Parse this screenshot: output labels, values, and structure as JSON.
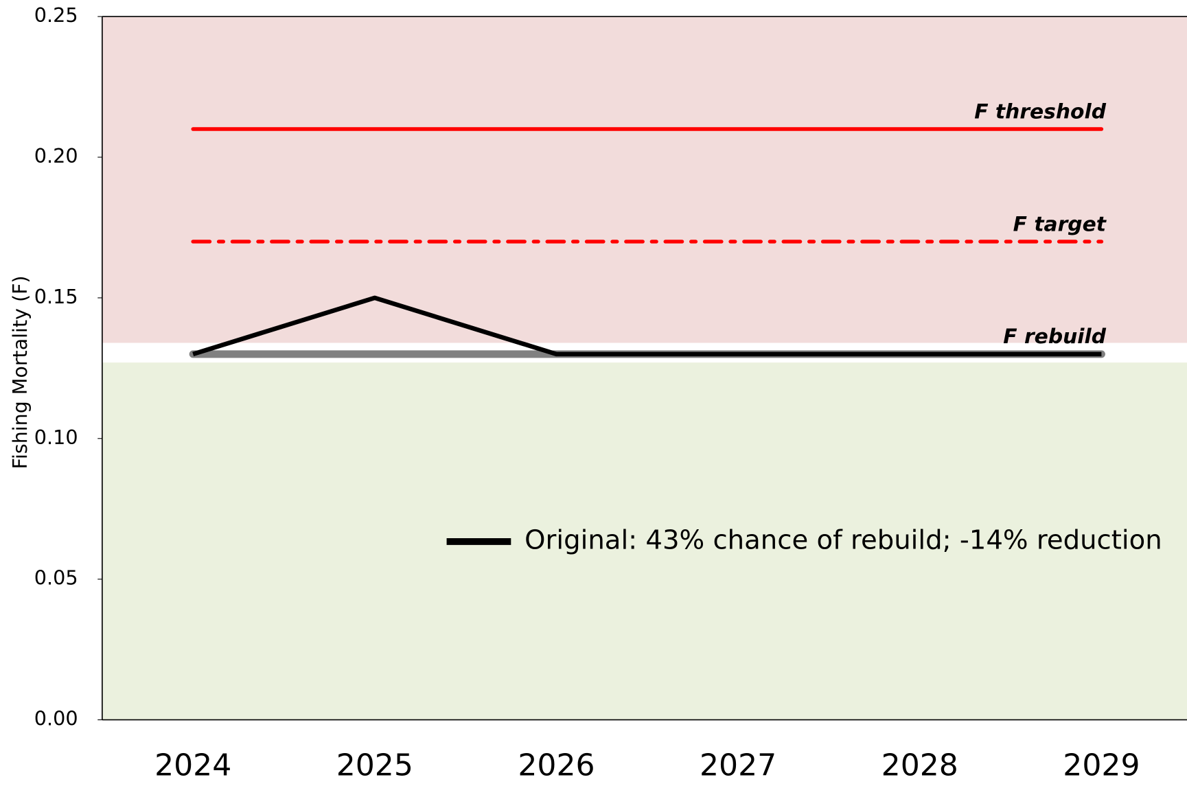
{
  "chart_data": {
    "type": "line",
    "y_label": "Fishing Mortality (F)",
    "categories": [
      "2024",
      "2025",
      "2026",
      "2027",
      "2028",
      "2029"
    ],
    "series": [
      {
        "name": "Original: 43% chance of rebuild; -14% reduction",
        "color": "#000000",
        "values": [
          0.13,
          0.15,
          0.13,
          0.13,
          0.13,
          0.13
        ]
      }
    ],
    "reference_lines": [
      {
        "name": "F threshold",
        "value": 0.21,
        "color": "#ff0000",
        "dash": "solid"
      },
      {
        "name": "F target",
        "value": 0.17,
        "color": "#ff0000",
        "dash": "dash-dot"
      },
      {
        "name": "F rebuild",
        "value": 0.13,
        "color": "#808080",
        "dash": "solid"
      }
    ],
    "bands": [
      {
        "from": 0.134,
        "to": 0.25,
        "color": "#f2dcdb"
      },
      {
        "from": 0,
        "to": 0.127,
        "color": "#ebf1de"
      }
    ],
    "ylim": [
      0,
      0.25
    ],
    "yticks": [
      {
        "value": 0,
        "label": "0.00"
      },
      {
        "value": 0.05,
        "label": "0.05"
      },
      {
        "value": 0.1,
        "label": "0.10"
      },
      {
        "value": 0.15,
        "label": "0.15"
      },
      {
        "value": 0.2,
        "label": "0.20"
      },
      {
        "value": 0.25,
        "label": "0.25"
      }
    ],
    "legend": "center-right"
  }
}
